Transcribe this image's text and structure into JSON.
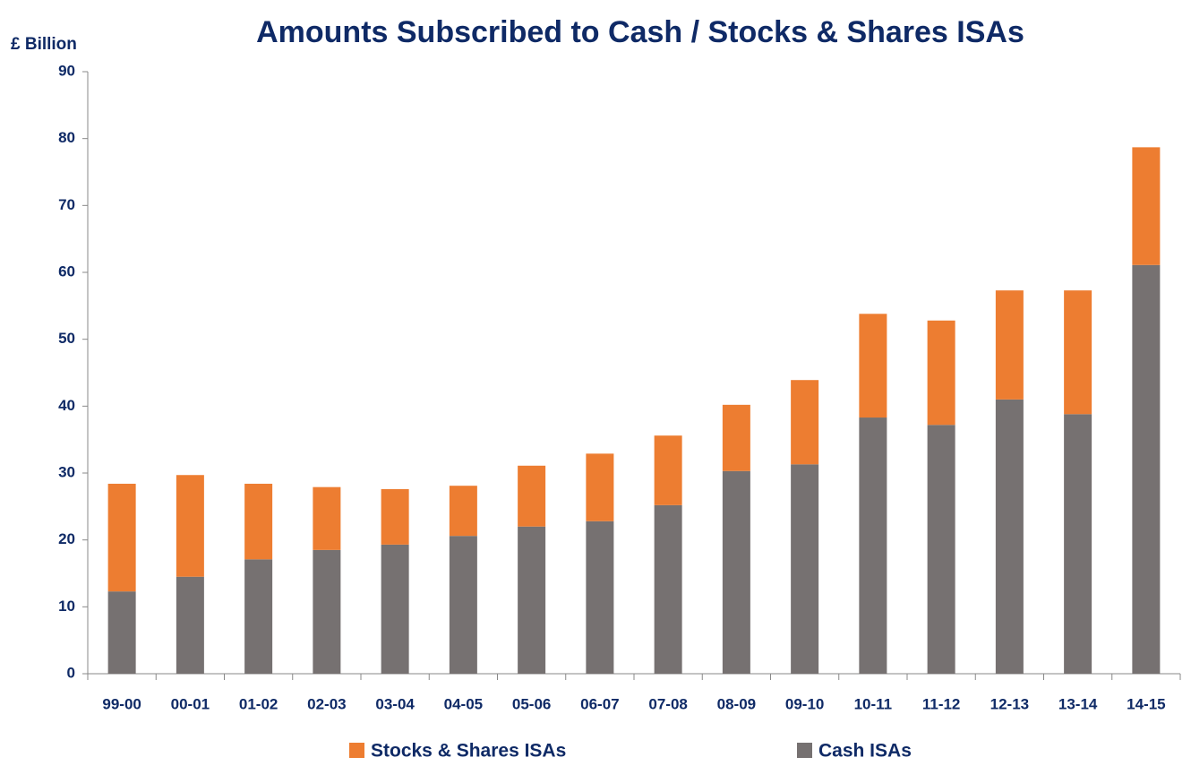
{
  "chart_data": {
    "type": "bar",
    "stacked": true,
    "title": "Amounts Subscribed to Cash / Stocks & Shares ISAs",
    "y_label": "£ Billion",
    "categories": [
      "99-00",
      "00-01",
      "01-02",
      "02-03",
      "03-04",
      "04-05",
      "05-06",
      "06-07",
      "07-08",
      "08-09",
      "09-10",
      "10-11",
      "11-12",
      "12-13",
      "13-14",
      "14-15"
    ],
    "series": [
      {
        "name": "Stocks & Shares ISAs",
        "color": "#ed7d31",
        "values": [
          16.1,
          15.2,
          11.3,
          9.4,
          8.3,
          7.5,
          9.1,
          10.1,
          10.4,
          9.9,
          12.6,
          15.5,
          15.6,
          16.3,
          18.5,
          17.6
        ]
      },
      {
        "name": "Cash ISAs",
        "color": "#767171",
        "values": [
          12.3,
          14.5,
          17.1,
          18.5,
          19.3,
          20.6,
          22.0,
          22.8,
          25.2,
          30.3,
          31.3,
          38.3,
          37.2,
          41.0,
          38.8,
          61.1
        ]
      }
    ],
    "ylim": [
      0,
      90
    ],
    "yticks": [
      0,
      10,
      20,
      30,
      40,
      50,
      60,
      70,
      80,
      90
    ],
    "grid": false,
    "legend": "bottom"
  }
}
